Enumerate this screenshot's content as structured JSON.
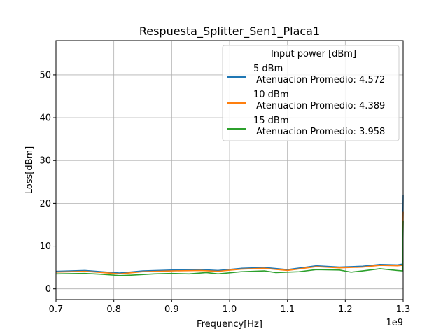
{
  "chart_data": {
    "type": "line",
    "title": "Respuesta_Splitter_Sen1_Placa1",
    "xlabel": "Frequency[Hz]",
    "ylabel": "Loss[dBm]",
    "x_offset_label": "1e9",
    "xlim": [
      0.7,
      1.3
    ],
    "ylim": [
      -2.5,
      58
    ],
    "x_ticks": [
      "0.7",
      "0.8",
      "0.9",
      "1.0",
      "1.1",
      "1.2",
      "1.3"
    ],
    "y_ticks": [
      "0",
      "10",
      "20",
      "30",
      "40",
      "50"
    ],
    "grid": true,
    "legend": {
      "title": "Input power [dBm]",
      "placement": "top-right"
    },
    "series": [
      {
        "name": "5 dBm\n Atenuacion Promedio: 4.572",
        "color": "#1f77b4",
        "x": [
          0.7,
          0.75,
          0.78,
          0.81,
          0.85,
          0.9,
          0.95,
          0.98,
          1.02,
          1.06,
          1.1,
          1.15,
          1.19,
          1.23,
          1.26,
          1.29,
          1.299,
          1.3
        ],
        "y": [
          4.1,
          4.3,
          4.0,
          3.7,
          4.2,
          4.4,
          4.5,
          4.3,
          4.8,
          5.0,
          4.5,
          5.4,
          5.1,
          5.3,
          5.7,
          5.6,
          5.8,
          22.0
        ]
      },
      {
        "name": "10 dBm\n Atenuacion Promedio: 4.389",
        "color": "#ff7f0e",
        "x": [
          0.7,
          0.75,
          0.78,
          0.81,
          0.85,
          0.9,
          0.95,
          0.98,
          1.02,
          1.06,
          1.1,
          1.15,
          1.19,
          1.23,
          1.26,
          1.29,
          1.299,
          1.3
        ],
        "y": [
          3.9,
          4.1,
          3.8,
          3.5,
          4.0,
          4.2,
          4.3,
          4.1,
          4.6,
          4.8,
          4.3,
          5.2,
          4.9,
          5.1,
          5.5,
          5.4,
          5.5,
          18.0
        ]
      },
      {
        "name": "15 dBm\n Atenuacion Promedio: 3.958",
        "color": "#2ca02c",
        "x": [
          0.7,
          0.75,
          0.78,
          0.81,
          0.83,
          0.87,
          0.9,
          0.93,
          0.96,
          0.98,
          1.02,
          1.06,
          1.08,
          1.12,
          1.15,
          1.19,
          1.21,
          1.23,
          1.26,
          1.29,
          1.299,
          1.3
        ],
        "y": [
          3.5,
          3.6,
          3.4,
          3.1,
          3.2,
          3.5,
          3.6,
          3.5,
          3.8,
          3.5,
          4.0,
          4.2,
          3.8,
          4.0,
          4.5,
          4.4,
          3.9,
          4.2,
          4.7,
          4.3,
          4.2,
          16.0
        ]
      }
    ]
  }
}
